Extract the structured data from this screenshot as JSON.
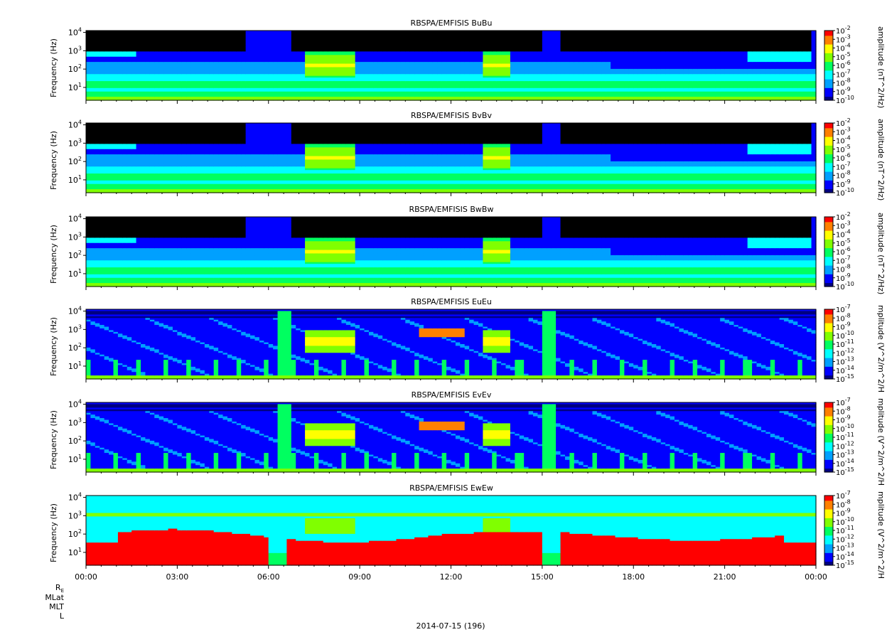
{
  "chart_data": [
    {
      "type": "heatmap",
      "title": "RBSPA/EMFISIS  BuBu",
      "ylabel": "Frequency (Hz)",
      "yscale": "log",
      "yticks": [
        "10^1",
        "10^2",
        "10^3",
        "10^4"
      ],
      "colorbar_label": "amplitude (nT^2/Hz)",
      "colorbar_ticks": [
        "10^-2",
        "10^-3",
        "10^-4",
        "10^-5",
        "10^-6",
        "10^-7",
        "10^-8",
        "10^-9",
        "10^-10"
      ],
      "colorbar_range": [
        -10,
        -2
      ],
      "field": "magnetic",
      "features": {
        "cut_freq_exp": 3.0,
        "bursts": [
          [
            5.2,
            6.8
          ],
          [
            15.0,
            15.6
          ],
          [
            23.9,
            24.0
          ]
        ],
        "chorus_bands": [
          [
            7.2,
            8.8
          ],
          [
            13.0,
            14.0
          ]
        ],
        "data_gap_start": 17.3
      }
    },
    {
      "type": "heatmap",
      "title": "RBSPA/EMFISIS  BvBv",
      "ylabel": "Frequency (Hz)",
      "yscale": "log",
      "yticks": [
        "10^1",
        "10^2",
        "10^3",
        "10^4"
      ],
      "colorbar_label": "amplitude (nT^2/Hz)",
      "colorbar_ticks": [
        "10^-2",
        "10^-3",
        "10^-4",
        "10^-5",
        "10^-6",
        "10^-7",
        "10^-8",
        "10^-9",
        "10^-10"
      ],
      "colorbar_range": [
        -10,
        -2
      ],
      "field": "magnetic",
      "features": {
        "cut_freq_exp": 3.0,
        "bursts": [
          [
            5.2,
            6.8
          ],
          [
            15.0,
            15.6
          ],
          [
            23.9,
            24.0
          ]
        ],
        "chorus_bands": [
          [
            7.2,
            8.8
          ],
          [
            13.0,
            14.0
          ]
        ],
        "data_gap_start": 17.3
      }
    },
    {
      "type": "heatmap",
      "title": "RBSPA/EMFISIS  BwBw",
      "ylabel": "Frequency (Hz)",
      "yscale": "log",
      "yticks": [
        "10^1",
        "10^2",
        "10^3",
        "10^4"
      ],
      "colorbar_label": "amplitude (nT^2/Hz)",
      "colorbar_ticks": [
        "10^-2",
        "10^-3",
        "10^-4",
        "10^-5",
        "10^-6",
        "10^-7",
        "10^-8",
        "10^-9",
        "10^-10"
      ],
      "colorbar_range": [
        -10,
        -2
      ],
      "field": "magnetic",
      "features": {
        "cut_freq_exp": 3.0,
        "bursts": [
          [
            5.2,
            6.8
          ],
          [
            15.0,
            15.6
          ],
          [
            23.9,
            24.0
          ]
        ],
        "chorus_bands": [
          [
            7.2,
            8.8
          ],
          [
            13.0,
            14.0
          ]
        ],
        "data_gap_start": 17.3
      }
    },
    {
      "type": "heatmap",
      "title": "RBSPA/EMFISIS  EuEu",
      "ylabel": "Frequency (Hz)",
      "yscale": "log",
      "yticks": [
        "10^1",
        "10^2",
        "10^3",
        "10^4"
      ],
      "colorbar_label": "mplitude (V^2/m^2/H",
      "colorbar_ticks": [
        "10^-7",
        "10^-8",
        "10^-9",
        "10^-10",
        "10^-11",
        "10^-12",
        "10^-13",
        "10^-14",
        "10^-15"
      ],
      "colorbar_range": [
        -15,
        -7
      ],
      "field": "electric",
      "features": {
        "cut_freq_exp": 3.3,
        "bursts": [
          [
            6.3,
            6.8
          ],
          [
            15.0,
            15.5
          ]
        ],
        "chorus_bands": [
          [
            7.2,
            8.8
          ],
          [
            13.0,
            14.0
          ]
        ],
        "intense_band": [
          10.9,
          12.4
        ]
      }
    },
    {
      "type": "heatmap",
      "title": "RBSPA/EMFISIS  EvEv",
      "ylabel": "Frequency (Hz)",
      "yscale": "log",
      "yticks": [
        "10^1",
        "10^2",
        "10^3",
        "10^4"
      ],
      "colorbar_label": "mplitude (V^2/m^2/H",
      "colorbar_ticks": [
        "10^-7",
        "10^-8",
        "10^-9",
        "10^-10",
        "10^-11",
        "10^-12",
        "10^-13",
        "10^-14",
        "10^-15"
      ],
      "colorbar_range": [
        -15,
        -7
      ],
      "field": "electric",
      "features": {
        "cut_freq_exp": 3.3,
        "bursts": [
          [
            6.3,
            6.8
          ],
          [
            15.0,
            15.5
          ]
        ],
        "chorus_bands": [
          [
            7.2,
            8.8
          ],
          [
            13.0,
            14.0
          ]
        ],
        "intense_band": [
          10.9,
          12.4
        ]
      }
    },
    {
      "type": "heatmap",
      "title": "RBSPA/EMFISIS  EwEw",
      "ylabel": "Frequency (Hz)",
      "yscale": "log",
      "yticks": [
        "10^1",
        "10^2",
        "10^3",
        "10^4"
      ],
      "colorbar_label": "mplitude (V^2/m^2/H",
      "colorbar_ticks": [
        "10^-7",
        "10^-8",
        "10^-9",
        "10^-10",
        "10^-11",
        "10^-12",
        "10^-13",
        "10^-14",
        "10^-15"
      ],
      "colorbar_range": [
        -15,
        -7
      ],
      "field": "electric-axial",
      "features": {
        "red_floor_gaps": [
          [
            6.0,
            6.6
          ],
          [
            15.0,
            15.55
          ]
        ],
        "chorus_bands": [
          [
            7.2,
            8.8
          ],
          [
            13.0,
            14.0
          ]
        ]
      }
    }
  ],
  "xaxis": {
    "tick_labels": [
      "00:00",
      "03:00",
      "06:00",
      "09:00",
      "12:00",
      "15:00",
      "18:00",
      "21:00",
      "00:00"
    ],
    "range_hours": [
      0,
      24
    ]
  },
  "ephemeris_labels": [
    "R",
    "MLat",
    "MLT",
    "L"
  ],
  "ephemeris_subscript": "E",
  "date_label": "2014-07-15 (196)",
  "colormap": [
    "#000080",
    "#0000ff",
    "#00a0ff",
    "#00ffff",
    "#00ff60",
    "#80ff00",
    "#ffff00",
    "#ff8000",
    "#ff0000"
  ]
}
